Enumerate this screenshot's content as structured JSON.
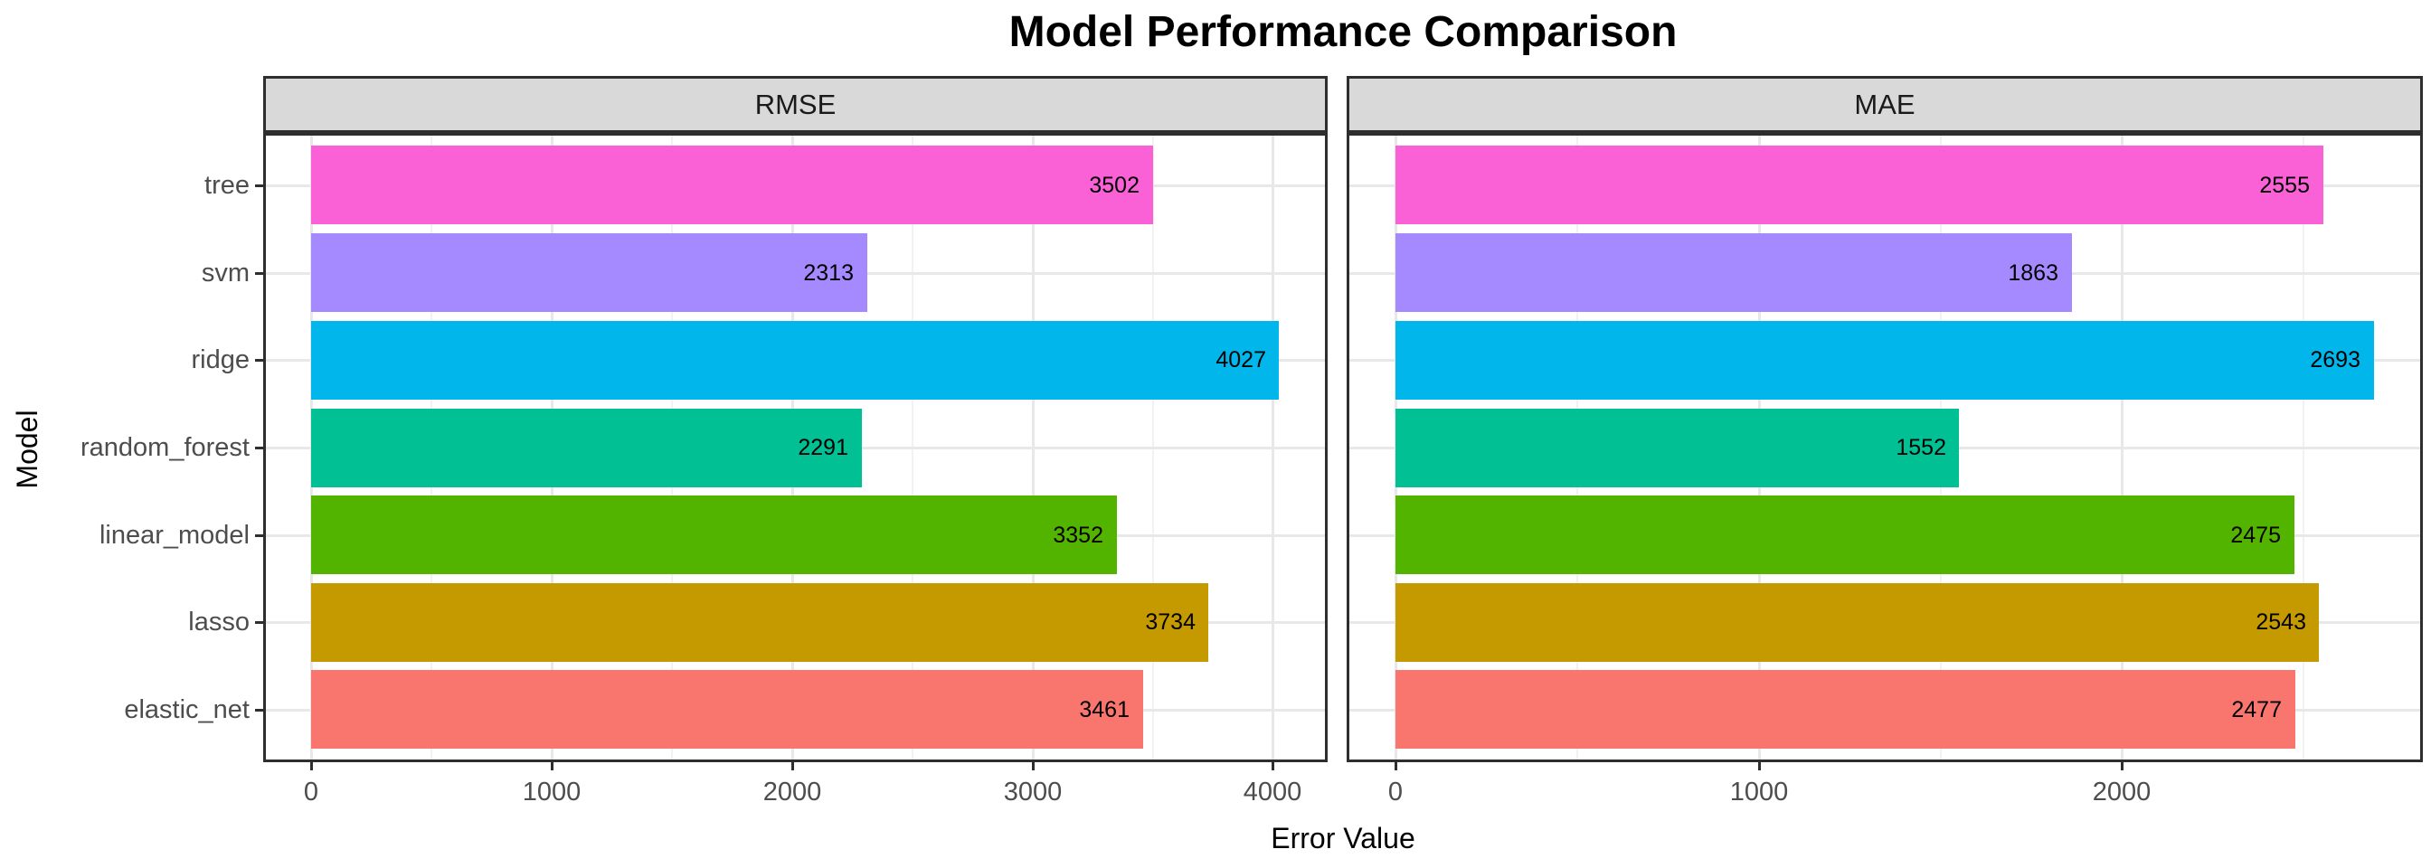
{
  "chart_data": {
    "type": "bar",
    "orientation": "horizontal",
    "title": "Model Performance Comparison",
    "xlabel": "Error Value",
    "ylabel": "Model",
    "legend_position": "none",
    "grid": true,
    "categories_top_to_bottom": [
      "tree",
      "svm",
      "ridge",
      "random_forest",
      "linear_model",
      "lasso",
      "elastic_net"
    ],
    "bar_colors_top_to_bottom": [
      "#FB61D7",
      "#A58AFF",
      "#00B6EB",
      "#00C094",
      "#53B400",
      "#C49A00",
      "#F8766D"
    ],
    "facets": [
      {
        "label": "RMSE",
        "values_top_to_bottom": [
          3502,
          2313,
          4027,
          2291,
          3352,
          3734,
          3461
        ],
        "x_major_ticks": [
          0,
          1000,
          2000,
          3000,
          4000
        ],
        "x_minor_ticks": [
          500,
          1500,
          2500,
          3500
        ],
        "xlim": [
          -201,
          4228
        ]
      },
      {
        "label": "MAE",
        "values_top_to_bottom": [
          2555,
          1863,
          2693,
          1552,
          2475,
          2543,
          2477
        ],
        "x_major_ticks": [
          0,
          1000,
          2000
        ],
        "x_minor_ticks": [
          500,
          1500,
          2500
        ],
        "xlim": [
          -135,
          2828
        ]
      }
    ]
  },
  "style": {
    "background": "#FFFFFF",
    "strip_bg": "#D9D9D9",
    "panel_border": "#2E2E2E",
    "grid_major": "#E8E8E8",
    "grid_minor": "#F2F2F2",
    "tick_label_color": "#4D4D4D",
    "bar_label_color": "#000000",
    "title_color": "#000000"
  }
}
